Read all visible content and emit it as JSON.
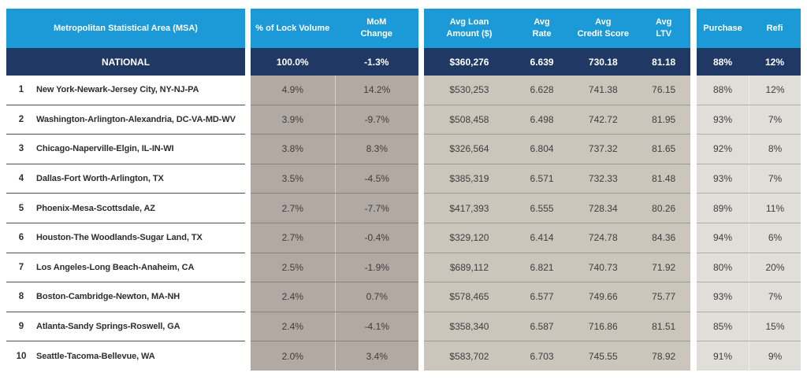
{
  "colors": {
    "header_blue": "#1B9AD7",
    "navy": "#1F3864",
    "taupe_column_bg": "#B2A9A3",
    "beige_column_bg": "#CAC6BC",
    "light_column_bg": "#E0DED8"
  },
  "chart_data": {
    "type": "table",
    "columns": {
      "msa": "Metropolitan Statistical Area (MSA)",
      "lock_volume": "% of Lock Volume",
      "mom_change": "MoM\nChange",
      "avg_loan": "Avg Loan\nAmount ($)",
      "avg_rate": "Avg\nRate",
      "avg_credit": "Avg\nCredit Score",
      "avg_ltv": "Avg\nLTV",
      "purchase": "Purchase",
      "refi": "Refi"
    },
    "national": {
      "label": "NATIONAL",
      "lock_volume": "100.0%",
      "mom_change": "-1.3%",
      "avg_loan": "$360,276",
      "avg_rate": "6.639",
      "avg_credit": "730.18",
      "avg_ltv": "81.18",
      "purchase": "88%",
      "refi": "12%"
    },
    "rows": [
      {
        "rank": "1",
        "msa": "New York-Newark-Jersey City, NY-NJ-PA",
        "lock_volume": "4.9%",
        "mom_change": "14.2%",
        "avg_loan": "$530,253",
        "avg_rate": "6.628",
        "avg_credit": "741.38",
        "avg_ltv": "76.15",
        "purchase": "88%",
        "refi": "12%"
      },
      {
        "rank": "2",
        "msa": "Washington-Arlington-Alexandria, DC-VA-MD-WV",
        "lock_volume": "3.9%",
        "mom_change": "-9.7%",
        "avg_loan": "$508,458",
        "avg_rate": "6.498",
        "avg_credit": "742.72",
        "avg_ltv": "81.95",
        "purchase": "93%",
        "refi": "7%"
      },
      {
        "rank": "3",
        "msa": "Chicago-Naperville-Elgin, IL-IN-WI",
        "lock_volume": "3.8%",
        "mom_change": "8.3%",
        "avg_loan": "$326,564",
        "avg_rate": "6.804",
        "avg_credit": "737.32",
        "avg_ltv": "81.65",
        "purchase": "92%",
        "refi": "8%"
      },
      {
        "rank": "4",
        "msa": "Dallas-Fort Worth-Arlington, TX",
        "lock_volume": "3.5%",
        "mom_change": "-4.5%",
        "avg_loan": "$385,319",
        "avg_rate": "6.571",
        "avg_credit": "732.33",
        "avg_ltv": "81.48",
        "purchase": "93%",
        "refi": "7%"
      },
      {
        "rank": "5",
        "msa": "Phoenix-Mesa-Scottsdale, AZ",
        "lock_volume": "2.7%",
        "mom_change": "-7.7%",
        "avg_loan": "$417,393",
        "avg_rate": "6.555",
        "avg_credit": "728.34",
        "avg_ltv": "80.26",
        "purchase": "89%",
        "refi": "11%"
      },
      {
        "rank": "6",
        "msa": "Houston-The Woodlands-Sugar Land, TX",
        "lock_volume": "2.7%",
        "mom_change": "-0.4%",
        "avg_loan": "$329,120",
        "avg_rate": "6.414",
        "avg_credit": "724.78",
        "avg_ltv": "84.36",
        "purchase": "94%",
        "refi": "6%"
      },
      {
        "rank": "7",
        "msa": "Los Angeles-Long Beach-Anaheim, CA",
        "lock_volume": "2.5%",
        "mom_change": "-1.9%",
        "avg_loan": "$689,112",
        "avg_rate": "6.821",
        "avg_credit": "740.73",
        "avg_ltv": "71.92",
        "purchase": "80%",
        "refi": "20%"
      },
      {
        "rank": "8",
        "msa": "Boston-Cambridge-Newton, MA-NH",
        "lock_volume": "2.4%",
        "mom_change": "0.7%",
        "avg_loan": "$578,465",
        "avg_rate": "6.577",
        "avg_credit": "749.66",
        "avg_ltv": "75.77",
        "purchase": "93%",
        "refi": "7%"
      },
      {
        "rank": "9",
        "msa": "Atlanta-Sandy Springs-Roswell, GA",
        "lock_volume": "2.4%",
        "mom_change": "-4.1%",
        "avg_loan": "$358,340",
        "avg_rate": "6.587",
        "avg_credit": "716.86",
        "avg_ltv": "81.51",
        "purchase": "85%",
        "refi": "15%"
      },
      {
        "rank": "10",
        "msa": "Seattle-Tacoma-Bellevue, WA",
        "lock_volume": "2.0%",
        "mom_change": "3.4%",
        "avg_loan": "$583,702",
        "avg_rate": "6.703",
        "avg_credit": "745.55",
        "avg_ltv": "78.92",
        "purchase": "91%",
        "refi": "9%"
      }
    ]
  }
}
